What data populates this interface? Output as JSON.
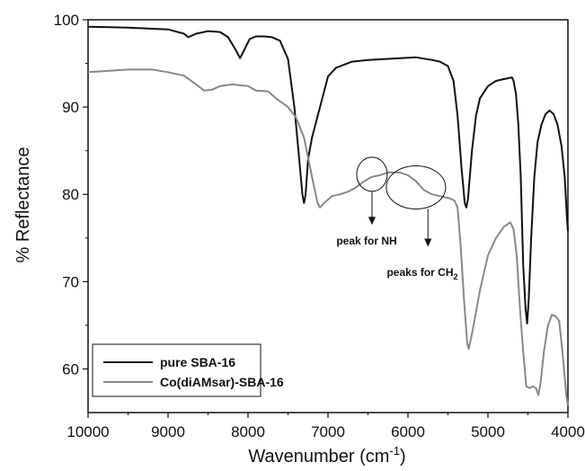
{
  "chart_data": {
    "type": "line",
    "title": "",
    "xlabel": "Wavenumber (cm",
    "xlabel_sup": "-1",
    "xlabel_close": ")",
    "ylabel": "% Reflectance",
    "xlim": [
      10000,
      4000
    ],
    "ylim": [
      55,
      100
    ],
    "x_reversed": true,
    "x_ticks": [
      10000,
      9000,
      8000,
      7000,
      6000,
      5000,
      4000
    ],
    "y_ticks": [
      60,
      70,
      80,
      90,
      100
    ],
    "grid": false,
    "legend_position": "bottom-left",
    "series": [
      {
        "name": "pure SBA-16",
        "color": "#111111",
        "points": [
          [
            10000,
            99.2
          ],
          [
            9500,
            99.1
          ],
          [
            9000,
            98.9
          ],
          [
            8800,
            98.4
          ],
          [
            8750,
            98.0
          ],
          [
            8650,
            98.4
          ],
          [
            8500,
            98.7
          ],
          [
            8350,
            98.6
          ],
          [
            8250,
            98.0
          ],
          [
            8150,
            96.5
          ],
          [
            8100,
            95.6
          ],
          [
            8050,
            96.5
          ],
          [
            7980,
            97.8
          ],
          [
            7900,
            98.1
          ],
          [
            7800,
            98.1
          ],
          [
            7700,
            98.0
          ],
          [
            7600,
            97.6
          ],
          [
            7500,
            95.5
          ],
          [
            7420,
            90.0
          ],
          [
            7360,
            84.0
          ],
          [
            7320,
            80.0
          ],
          [
            7300,
            79.0
          ],
          [
            7280,
            80.0
          ],
          [
            7250,
            84.0
          ],
          [
            7200,
            86.5
          ],
          [
            7100,
            90.0
          ],
          [
            7000,
            93.5
          ],
          [
            6900,
            94.5
          ],
          [
            6700,
            95.2
          ],
          [
            6500,
            95.4
          ],
          [
            6300,
            95.5
          ],
          [
            6100,
            95.6
          ],
          [
            5900,
            95.7
          ],
          [
            5700,
            95.4
          ],
          [
            5600,
            95.2
          ],
          [
            5500,
            94.7
          ],
          [
            5430,
            93.0
          ],
          [
            5380,
            89.0
          ],
          [
            5330,
            83.0
          ],
          [
            5290,
            79.0
          ],
          [
            5270,
            78.5
          ],
          [
            5250,
            79.5
          ],
          [
            5200,
            85.0
          ],
          [
            5150,
            89.0
          ],
          [
            5100,
            91.0
          ],
          [
            5000,
            92.4
          ],
          [
            4900,
            93.0
          ],
          [
            4800,
            93.2
          ],
          [
            4700,
            93.4
          ],
          [
            4680,
            93.0
          ],
          [
            4650,
            91.5
          ],
          [
            4620,
            88.0
          ],
          [
            4590,
            82.0
          ],
          [
            4560,
            72.0
          ],
          [
            4530,
            67.0
          ],
          [
            4510,
            65.2
          ],
          [
            4490,
            68.0
          ],
          [
            4460,
            75.0
          ],
          [
            4420,
            82.0
          ],
          [
            4380,
            86.0
          ],
          [
            4330,
            88.0
          ],
          [
            4280,
            89.2
          ],
          [
            4230,
            89.6
          ],
          [
            4180,
            89.2
          ],
          [
            4130,
            88.0
          ],
          [
            4080,
            85.5
          ],
          [
            4040,
            82.0
          ],
          [
            4010,
            77.0
          ],
          [
            4000,
            75.8
          ]
        ]
      },
      {
        "name": "Co(diAMsar)-SBA-16",
        "color": "#888888",
        "points": [
          [
            10000,
            94.0
          ],
          [
            9500,
            94.3
          ],
          [
            9200,
            94.3
          ],
          [
            9000,
            94.0
          ],
          [
            8800,
            93.6
          ],
          [
            8650,
            92.6
          ],
          [
            8550,
            91.9
          ],
          [
            8450,
            92.0
          ],
          [
            8350,
            92.4
          ],
          [
            8200,
            92.6
          ],
          [
            8000,
            92.4
          ],
          [
            7900,
            91.9
          ],
          [
            7750,
            91.8
          ],
          [
            7650,
            91.0
          ],
          [
            7500,
            90.0
          ],
          [
            7400,
            88.8
          ],
          [
            7300,
            86.5
          ],
          [
            7200,
            82.0
          ],
          [
            7130,
            79.0
          ],
          [
            7100,
            78.5
          ],
          [
            7050,
            79.0
          ],
          [
            6950,
            79.8
          ],
          [
            6850,
            80.0
          ],
          [
            6750,
            80.3
          ],
          [
            6650,
            80.8
          ],
          [
            6550,
            81.5
          ],
          [
            6450,
            82.0
          ],
          [
            6350,
            82.2
          ],
          [
            6250,
            82.5
          ],
          [
            6100,
            82.5
          ],
          [
            6000,
            82.2
          ],
          [
            5900,
            81.5
          ],
          [
            5800,
            80.5
          ],
          [
            5700,
            80.0
          ],
          [
            5600,
            79.8
          ],
          [
            5500,
            79.6
          ],
          [
            5420,
            79.3
          ],
          [
            5380,
            78.5
          ],
          [
            5340,
            74.0
          ],
          [
            5300,
            68.0
          ],
          [
            5260,
            63.0
          ],
          [
            5240,
            62.3
          ],
          [
            5200,
            64.0
          ],
          [
            5100,
            69.0
          ],
          [
            5000,
            73.0
          ],
          [
            4900,
            75.0
          ],
          [
            4800,
            76.3
          ],
          [
            4720,
            76.8
          ],
          [
            4680,
            76.0
          ],
          [
            4640,
            73.0
          ],
          [
            4600,
            67.0
          ],
          [
            4560,
            62.0
          ],
          [
            4520,
            58.0
          ],
          [
            4480,
            57.8
          ],
          [
            4440,
            58.0
          ],
          [
            4400,
            57.8
          ],
          [
            4370,
            57.0
          ],
          [
            4340,
            58.5
          ],
          [
            4300,
            62.0
          ],
          [
            4250,
            65.0
          ],
          [
            4200,
            66.2
          ],
          [
            4150,
            66.0
          ],
          [
            4110,
            65.5
          ],
          [
            4080,
            63.0
          ],
          [
            4050,
            60.0
          ],
          [
            4020,
            57.0
          ],
          [
            4000,
            55.8
          ]
        ]
      }
    ],
    "annotations": [
      {
        "text": "peak for NH",
        "circle_center": [
          6450,
          82.3
        ],
        "arrow_to": [
          6450,
          76.5
        ]
      },
      {
        "text": "peaks for CH",
        "sub": "2",
        "circle_center": [
          5900,
          80.8
        ],
        "arrow_to": [
          5750,
          74.0
        ]
      }
    ]
  }
}
